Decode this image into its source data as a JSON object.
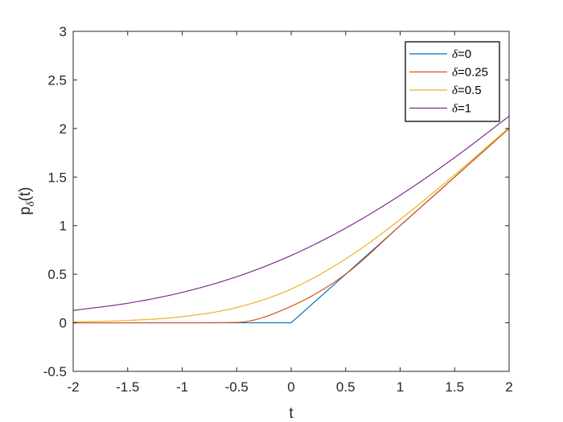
{
  "chart_data": {
    "type": "line",
    "title": "",
    "xlabel": "t",
    "ylabel": {
      "prefix": "p",
      "subscript": "δ",
      "suffix": "(t)"
    },
    "xlim": [
      -2,
      2
    ],
    "ylim": [
      -0.5,
      3
    ],
    "x_ticks": [
      -2,
      -1.5,
      -1,
      -0.5,
      0,
      0.5,
      1,
      1.5,
      2
    ],
    "x_tick_labels": [
      "-2",
      "-1.5",
      "-1",
      "-0.5",
      "0",
      "0.5",
      "1",
      "1.5",
      "2"
    ],
    "y_ticks": [
      -0.5,
      0,
      0.5,
      1,
      1.5,
      2,
      2.5,
      3
    ],
    "y_tick_labels": [
      "-0.5",
      "0",
      "0.5",
      "1",
      "1.5",
      "2",
      "2.5",
      "3"
    ],
    "grid": false,
    "legend_position": "top-right",
    "x": [
      -2,
      -1.5,
      -1,
      -0.5,
      0,
      0.5,
      1,
      1.5,
      2
    ],
    "series": [
      {
        "name": "δ=0",
        "symbol": "δ",
        "value_label": "=0",
        "color": "#0072BD",
        "values": [
          0,
          0,
          0,
          0,
          0,
          0.5,
          1,
          1.5,
          2
        ]
      },
      {
        "name": "δ=0.25",
        "symbol": "δ",
        "value_label": "=0.25",
        "color": "#D95319",
        "values": [
          0,
          0,
          0,
          0.004,
          0.17,
          0.501,
          1,
          1.5,
          2
        ]
      },
      {
        "name": "δ=0.5",
        "symbol": "δ",
        "value_label": "=0.5",
        "color": "#EDB120",
        "values": [
          0.009,
          0.024,
          0.063,
          0.157,
          0.347,
          0.657,
          1.063,
          1.524,
          2.009
        ]
      },
      {
        "name": "δ=1",
        "symbol": "δ",
        "value_label": "=1",
        "color": "#7E2F8E",
        "values": [
          0.127,
          0.201,
          0.313,
          0.474,
          0.693,
          0.974,
          1.313,
          1.701,
          2.127
        ]
      }
    ]
  }
}
